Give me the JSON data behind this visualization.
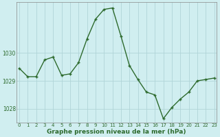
{
  "x": [
    0,
    1,
    2,
    3,
    4,
    5,
    6,
    7,
    8,
    9,
    10,
    11,
    12,
    13,
    14,
    15,
    16,
    17,
    18,
    19,
    20,
    21,
    22,
    23
  ],
  "y": [
    1029.45,
    1029.15,
    1029.15,
    1029.75,
    1029.85,
    1029.2,
    1029.25,
    1029.65,
    1030.5,
    1031.2,
    1031.55,
    1031.6,
    1030.6,
    1029.55,
    1029.05,
    1028.6,
    1028.5,
    1027.65,
    1028.05,
    1028.35,
    1028.6,
    1029.0,
    1029.05,
    1029.1
  ],
  "line_color": "#2d6a2d",
  "marker_color": "#2d6a2d",
  "bg_color": "#d0eef0",
  "grid_color": "#b0d4d8",
  "axis_color": "#888888",
  "xlabel": "Graphe pression niveau de la mer (hPa)",
  "xlabel_color": "#2d6a2d",
  "tick_color": "#2d6a2d",
  "ylim": [
    1027.5,
    1031.8
  ],
  "yticks": [
    1028,
    1029,
    1030
  ],
  "xticks": [
    0,
    1,
    2,
    3,
    4,
    5,
    6,
    7,
    8,
    9,
    10,
    11,
    12,
    13,
    14,
    15,
    16,
    17,
    18,
    19,
    20,
    21,
    22,
    23
  ]
}
